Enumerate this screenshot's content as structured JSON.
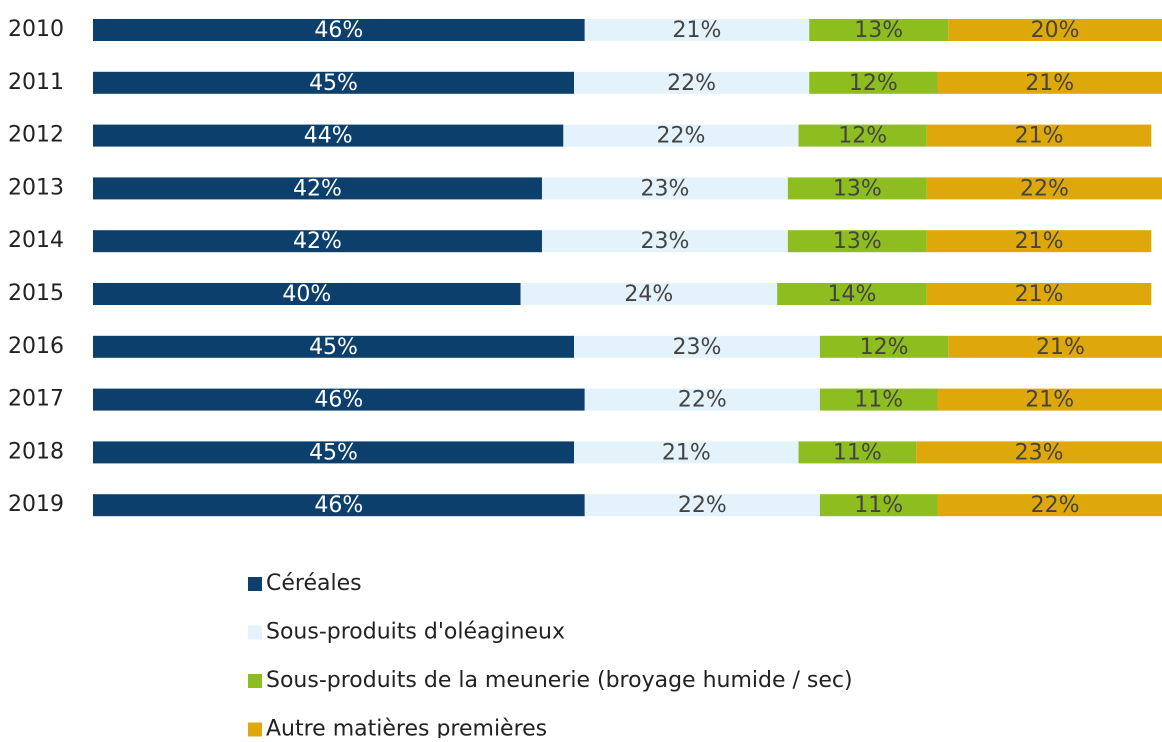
{
  "chart_data": {
    "type": "stacked-bar-horizontal",
    "categories": [
      "2010",
      "2011",
      "2012",
      "2013",
      "2014",
      "2015",
      "2016",
      "2017",
      "2018",
      "2019"
    ],
    "xlim": [
      0,
      100
    ],
    "series": [
      {
        "name": "Céréales",
        "color": "#0c3f6c",
        "label_color": "#ffffff",
        "values": [
          46,
          45,
          44,
          42,
          42,
          40,
          45,
          46,
          45,
          46
        ],
        "value_labels": [
          "46%",
          "45%",
          "44%",
          "42%",
          "42%",
          "40%",
          "45%",
          "46%",
          "45%",
          "46%"
        ]
      },
      {
        "name": "Sous-produits d'oléagineux",
        "color": "#e3f2fb",
        "label_color": "#444444",
        "values": [
          21,
          22,
          22,
          23,
          23,
          24,
          23,
          22,
          21,
          22
        ],
        "value_labels": [
          "21%",
          "22%",
          "22%",
          "23%",
          "23%",
          "24%",
          "23%",
          "22%",
          "21%",
          "22%"
        ]
      },
      {
        "name": "Sous-produits de la meunerie (broyage humide / sec)",
        "color": "#8dbd1f",
        "label_color": "#444444",
        "values": [
          13,
          12,
          12,
          13,
          13,
          14,
          12,
          11,
          11,
          11
        ],
        "value_labels": [
          "13%",
          "12%",
          "12%",
          "13%",
          "13%",
          "14%",
          "12%",
          "11%",
          "11%",
          "11%"
        ]
      },
      {
        "name": "Autre matières premières",
        "color": "#dfa80a",
        "label_color": "#444444",
        "values": [
          20,
          21,
          21,
          22,
          21,
          21,
          21,
          21,
          23,
          22
        ],
        "value_labels": [
          "20%",
          "21%",
          "21%",
          "22%",
          "21%",
          "21%",
          "21%",
          "21%",
          "23%",
          "22%"
        ]
      }
    ]
  }
}
